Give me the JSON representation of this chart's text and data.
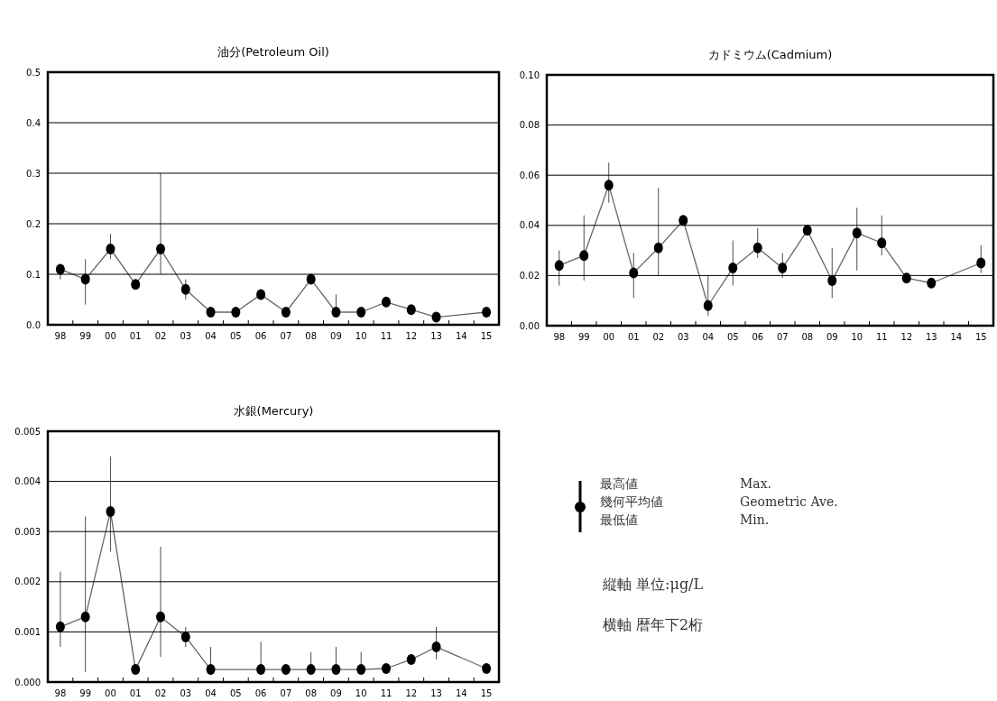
{
  "chart_data": [
    {
      "type": "line",
      "title": "油分(Petroleum Oil)",
      "categories": [
        "98",
        "99",
        "00",
        "01",
        "02",
        "03",
        "04",
        "05",
        "06",
        "07",
        "08",
        "09",
        "10",
        "11",
        "12",
        "13",
        "14",
        "15"
      ],
      "series": [
        {
          "color": "#000000",
          "values": [
            0.11,
            0.09,
            0.15,
            0.08,
            0.15,
            0.07,
            0.025,
            0.025,
            0.06,
            0.025,
            0.09,
            0.025,
            0.025,
            0.045,
            0.03,
            0.015,
            null,
            0.025
          ],
          "errors": [
            [
              0.09,
              0.12
            ],
            [
              0.04,
              0.13
            ],
            [
              0.13,
              0.18
            ],
            null,
            [
              0.1,
              0.3
            ],
            [
              0.05,
              0.09
            ],
            null,
            null,
            null,
            null,
            null,
            [
              0.025,
              0.06
            ],
            null,
            null,
            null,
            null,
            null,
            null
          ]
        }
      ],
      "ylim": [
        0,
        0.5
      ],
      "yticks": [
        {
          "value": 0,
          "label": "0.0"
        },
        {
          "value": 0.1,
          "label": "0.1"
        },
        {
          "value": 0.2,
          "label": "0.2"
        },
        {
          "value": 0.3,
          "label": "0.3"
        },
        {
          "value": 0.4,
          "label": "0.4"
        },
        {
          "value": 0.5,
          "label": "0.5"
        }
      ],
      "grid": "y",
      "marker": "circle",
      "line_style": "solid"
    },
    {
      "type": "line",
      "title": "カドミウム(Cadmium)",
      "categories": [
        "98",
        "99",
        "00",
        "01",
        "02",
        "03",
        "04",
        "05",
        "06",
        "07",
        "08",
        "09",
        "10",
        "11",
        "12",
        "13",
        "14",
        "15"
      ],
      "series": [
        {
          "color": "#000000",
          "values": [
            0.024,
            0.028,
            0.056,
            0.021,
            0.031,
            0.042,
            0.008,
            0.023,
            0.031,
            0.023,
            0.038,
            0.018,
            0.037,
            0.033,
            0.019,
            0.017,
            null,
            0.025
          ],
          "errors": [
            [
              0.016,
              0.03
            ],
            [
              0.018,
              0.044
            ],
            [
              0.049,
              0.065
            ],
            [
              0.011,
              0.029
            ],
            [
              0.02,
              0.055
            ],
            null,
            [
              0.004,
              0.02
            ],
            [
              0.016,
              0.034
            ],
            [
              0.027,
              0.039
            ],
            [
              0.019,
              0.029
            ],
            null,
            [
              0.011,
              0.031
            ],
            [
              0.022,
              0.047
            ],
            [
              0.028,
              0.044
            ],
            null,
            null,
            null,
            [
              0.021,
              0.032
            ]
          ]
        }
      ],
      "ylim": [
        0,
        0.1
      ],
      "yticks": [
        {
          "value": 0,
          "label": "0.00"
        },
        {
          "value": 0.02,
          "label": "0.02"
        },
        {
          "value": 0.04,
          "label": "0.04"
        },
        {
          "value": 0.06,
          "label": "0.06"
        },
        {
          "value": 0.08,
          "label": "0.08"
        },
        {
          "value": 0.1,
          "label": "0.10"
        }
      ],
      "grid": "y",
      "marker": "circle",
      "line_style": "solid"
    },
    {
      "type": "line",
      "title": "水銀(Mercury)",
      "categories": [
        "98",
        "99",
        "00",
        "01",
        "02",
        "03",
        "04",
        "05",
        "06",
        "07",
        "08",
        "09",
        "10",
        "11",
        "12",
        "13",
        "14",
        "15"
      ],
      "series": [
        {
          "color": "#000000",
          "values": [
            0.0011,
            0.0013,
            0.0034,
            0.00025,
            0.0013,
            0.0009,
            0.00025,
            null,
            0.00025,
            0.00025,
            0.00025,
            0.00025,
            0.00025,
            0.00027,
            0.00045,
            0.0007,
            null,
            0.00027
          ],
          "errors": [
            [
              0.0007,
              0.0022
            ],
            [
              0.0002,
              0.0033
            ],
            [
              0.0026,
              0.0045
            ],
            null,
            [
              0.0005,
              0.0027
            ],
            [
              0.0007,
              0.0011
            ],
            [
              0.00025,
              0.0007
            ],
            null,
            [
              0.00025,
              0.0008
            ],
            null,
            [
              0.00025,
              0.0006
            ],
            [
              0.00025,
              0.0007
            ],
            [
              0.00025,
              0.0006
            ],
            null,
            null,
            [
              0.00045,
              0.0011
            ],
            null,
            null
          ]
        }
      ],
      "ylim": [
        0,
        0.005
      ],
      "yticks": [
        {
          "value": 0,
          "label": "0.000"
        },
        {
          "value": 0.001,
          "label": "0.001"
        },
        {
          "value": 0.002,
          "label": "0.002"
        },
        {
          "value": 0.003,
          "label": "0.003"
        },
        {
          "value": 0.004,
          "label": "0.004"
        },
        {
          "value": 0.005,
          "label": "0.005"
        }
      ],
      "grid": "y",
      "marker": "circle",
      "line_style": "solid"
    },
    {
      "type": "other",
      "annotations": [
        "最高値",
        "Max.",
        "幾何平均値",
        "Geometric Ave.",
        "最低値",
        "Min.",
        "縦軸 単位:μg/L",
        "横軸 暦年下2桁"
      ]
    }
  ]
}
